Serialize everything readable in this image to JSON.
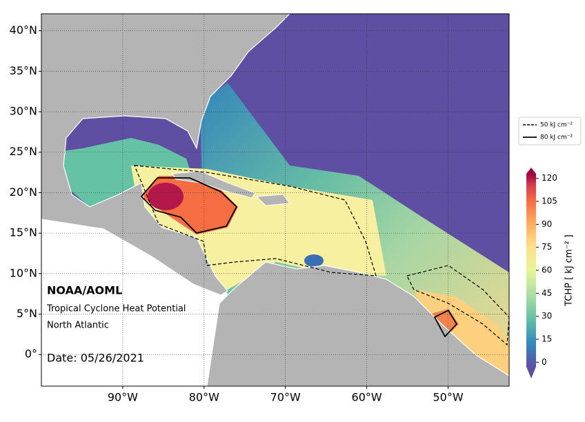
{
  "map": {
    "xlim": [
      -100,
      -42.5
    ],
    "ylim": [
      -3.9,
      42.1
    ],
    "lat_ticks": [
      {
        "value": 0,
        "label": "0°"
      },
      {
        "value": 5,
        "label": "5°N"
      },
      {
        "value": 10,
        "label": "10°N"
      },
      {
        "value": 15,
        "label": "15°N"
      },
      {
        "value": 20,
        "label": "20°N"
      },
      {
        "value": 25,
        "label": "25°N"
      },
      {
        "value": 30,
        "label": "30°N"
      },
      {
        "value": 35,
        "label": "35°N"
      },
      {
        "value": 40,
        "label": "40°N"
      }
    ],
    "lon_ticks": [
      {
        "value": -90,
        "label": "90°W"
      },
      {
        "value": -80,
        "label": "80°W"
      },
      {
        "value": -70,
        "label": "70°W"
      },
      {
        "value": -60,
        "label": "60°W"
      },
      {
        "value": -50,
        "label": "50°W"
      }
    ],
    "annotations": {
      "agency": "NOAA/AOML",
      "product": "Tropical Cyclone Heat Potential",
      "region": "North Atlantic",
      "date": "Date: 05/26/2021"
    },
    "legend": [
      "50 kJ cm⁻²",
      "80 kJ cm⁻²"
    ],
    "colorbar": {
      "label": "TCHP [ kJ cm⁻² ]",
      "lim": [
        -3,
        123
      ],
      "ticks": [
        0,
        15,
        30,
        45,
        60,
        75,
        90,
        105,
        120
      ]
    }
  }
}
